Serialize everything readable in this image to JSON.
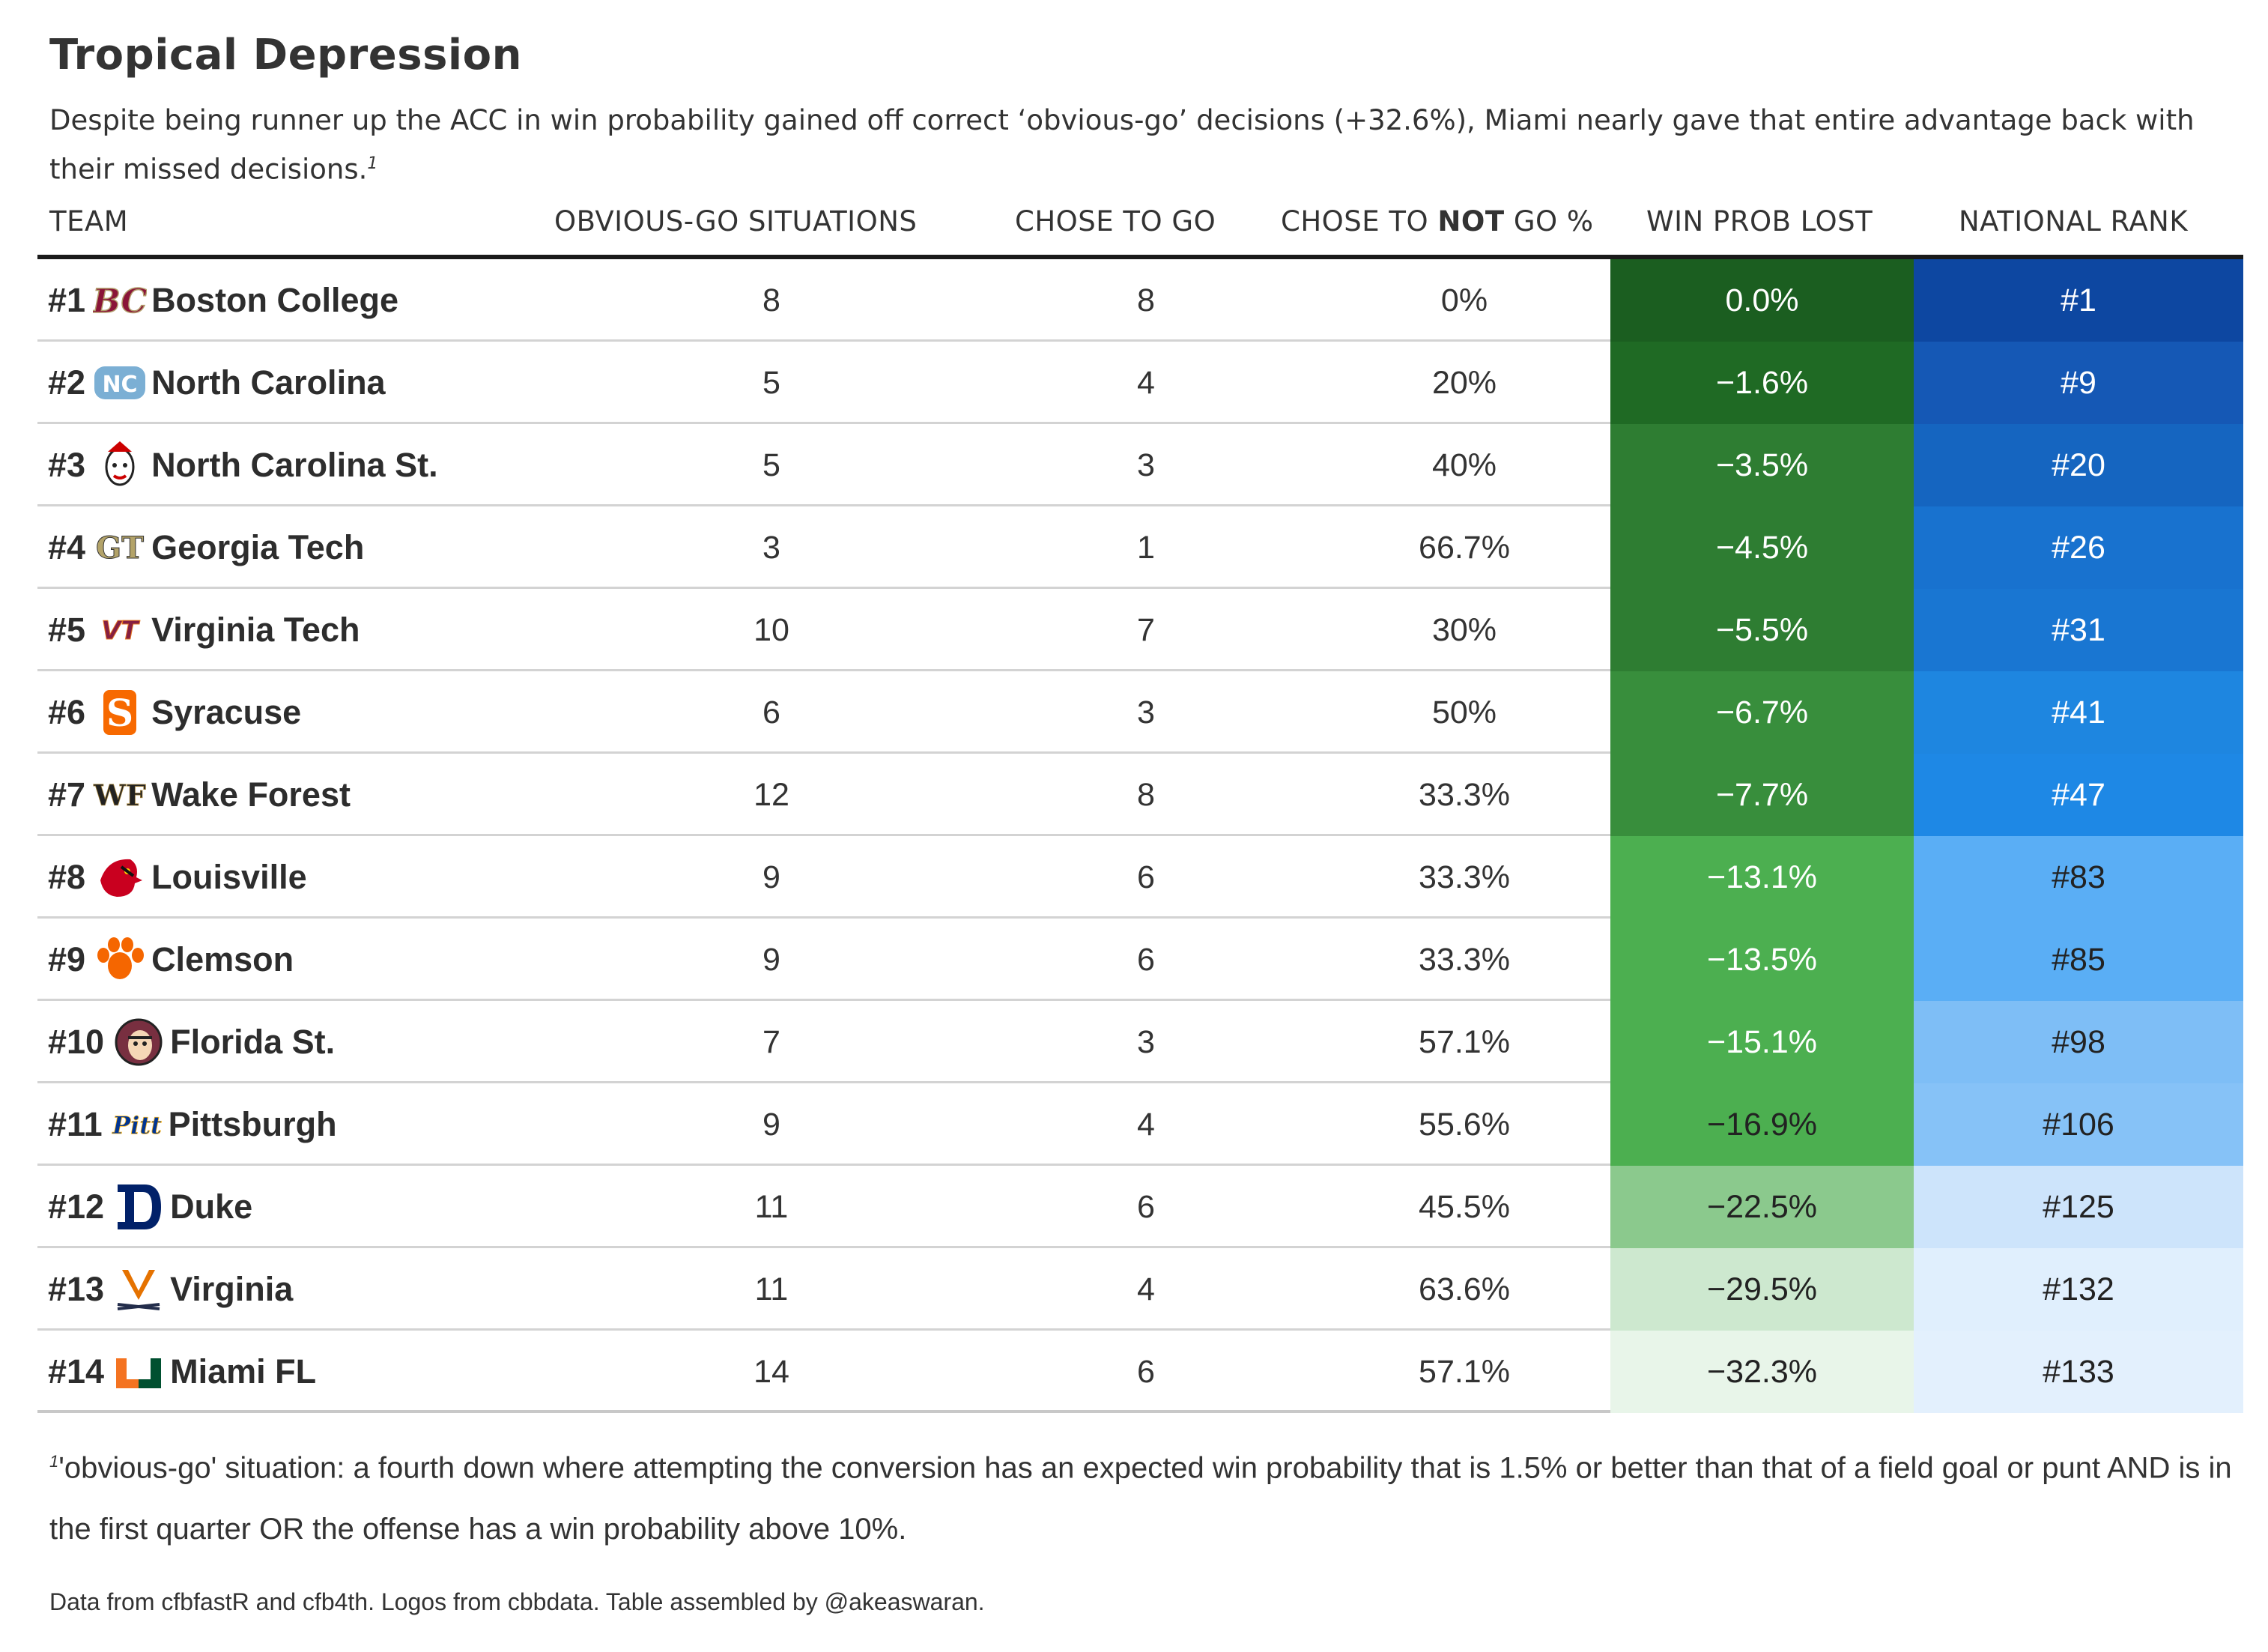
{
  "title": "Tropical Depression",
  "subtitle": "Despite being runner up the ACC in win probability gained off correct ‘obvious-go’ decisions (+32.6%), Miami nearly gave that entire advantage back with their missed decisions.",
  "subtitle_note_marker": "1",
  "headers": {
    "team": "TEAM",
    "obvious": "OBVIOUS-GO SITUATIONS",
    "chose": "CHOSE TO GO",
    "not_pre": "CHOSE TO ",
    "not_bold": "NOT",
    "not_post": " GO %",
    "wp": "WIN PROB LOST",
    "rank": "NATIONAL RANK"
  },
  "chart_data": {
    "type": "table",
    "columns": [
      "TEAM",
      "OBVIOUS-GO SITUATIONS",
      "CHOSE TO GO",
      "CHOSE TO NOT GO %",
      "WIN PROB LOST",
      "NATIONAL RANK"
    ],
    "rows": [
      {
        "rank": "#1",
        "team": "Boston College",
        "logo": "boston-college-logo",
        "obvious": 8,
        "chose": 8,
        "not_go": "0%",
        "wp_lost": "0.0%",
        "wp_value": 0.0,
        "national": "#1",
        "national_value": 1
      },
      {
        "rank": "#2",
        "team": "North Carolina",
        "logo": "north-carolina-logo",
        "obvious": 5,
        "chose": 4,
        "not_go": "20%",
        "wp_lost": "−1.6%",
        "wp_value": -1.6,
        "national": "#9",
        "national_value": 9
      },
      {
        "rank": "#3",
        "team": "North Carolina St.",
        "logo": "nc-state-logo",
        "obvious": 5,
        "chose": 3,
        "not_go": "40%",
        "wp_lost": "−3.5%",
        "wp_value": -3.5,
        "national": "#20",
        "national_value": 20
      },
      {
        "rank": "#4",
        "team": "Georgia Tech",
        "logo": "georgia-tech-logo",
        "obvious": 3,
        "chose": 1,
        "not_go": "66.7%",
        "wp_lost": "−4.5%",
        "wp_value": -4.5,
        "national": "#26",
        "national_value": 26
      },
      {
        "rank": "#5",
        "team": "Virginia Tech",
        "logo": "virginia-tech-logo",
        "obvious": 10,
        "chose": 7,
        "not_go": "30%",
        "wp_lost": "−5.5%",
        "wp_value": -5.5,
        "national": "#31",
        "national_value": 31
      },
      {
        "rank": "#6",
        "team": "Syracuse",
        "logo": "syracuse-logo",
        "obvious": 6,
        "chose": 3,
        "not_go": "50%",
        "wp_lost": "−6.7%",
        "wp_value": -6.7,
        "national": "#41",
        "national_value": 41
      },
      {
        "rank": "#7",
        "team": "Wake Forest",
        "logo": "wake-forest-logo",
        "obvious": 12,
        "chose": 8,
        "not_go": "33.3%",
        "wp_lost": "−7.7%",
        "wp_value": -7.7,
        "national": "#47",
        "national_value": 47
      },
      {
        "rank": "#8",
        "team": "Louisville",
        "logo": "louisville-logo",
        "obvious": 9,
        "chose": 6,
        "not_go": "33.3%",
        "wp_lost": "−13.1%",
        "wp_value": -13.1,
        "national": "#83",
        "national_value": 83
      },
      {
        "rank": "#9",
        "team": "Clemson",
        "logo": "clemson-logo",
        "obvious": 9,
        "chose": 6,
        "not_go": "33.3%",
        "wp_lost": "−13.5%",
        "wp_value": -13.5,
        "national": "#85",
        "national_value": 85
      },
      {
        "rank": "#10",
        "team": "Florida St.",
        "logo": "florida-state-logo",
        "obvious": 7,
        "chose": 3,
        "not_go": "57.1%",
        "wp_lost": "−15.1%",
        "wp_value": -15.1,
        "national": "#98",
        "national_value": 98
      },
      {
        "rank": "#11",
        "team": "Pittsburgh",
        "logo": "pittsburgh-logo",
        "obvious": 9,
        "chose": 4,
        "not_go": "55.6%",
        "wp_lost": "−16.9%",
        "wp_value": -16.9,
        "national": "#106",
        "national_value": 106
      },
      {
        "rank": "#12",
        "team": "Duke",
        "logo": "duke-logo",
        "obvious": 11,
        "chose": 6,
        "not_go": "45.5%",
        "wp_lost": "−22.5%",
        "wp_value": -22.5,
        "national": "#125",
        "national_value": 125
      },
      {
        "rank": "#13",
        "team": "Virginia",
        "logo": "virginia-logo",
        "obvious": 11,
        "chose": 4,
        "not_go": "63.6%",
        "wp_lost": "−29.5%",
        "wp_value": -29.5,
        "national": "#132",
        "national_value": 132
      },
      {
        "rank": "#14",
        "team": "Miami FL",
        "logo": "miami-logo",
        "obvious": 14,
        "chose": 6,
        "not_go": "57.1%",
        "wp_lost": "−32.3%",
        "wp_value": -32.3,
        "national": "#133",
        "national_value": 133
      }
    ],
    "wp_colors": [
      "#1b5e20",
      "#1f6a24",
      "#2e7d32",
      "#2e7d32",
      "#2e7d32",
      "#388e3c",
      "#388e3c",
      "#4caf50",
      "#4caf50",
      "#4caf50",
      "#4caf50",
      "#8bc98d",
      "#cde8cf",
      "#e8f5e9"
    ],
    "rank_colors": [
      "#0d47a1",
      "#1558b5",
      "#1565c0",
      "#1872cf",
      "#1976d2",
      "#1e86e0",
      "#1e88e5",
      "#5aaef5",
      "#5aaef5",
      "#7ebef6",
      "#86c2f7",
      "#cde4fb",
      "#e0effd",
      "#e3f0fd"
    ],
    "wp_text_light_until": 10
  },
  "footnote_marker": "1",
  "footnote": "'obvious-go' situation: a fourth down where attempting the conversion has an expected win probability that is 1.5% or better than that of a field goal or punt AND is in the first quarter OR the offense has a win probability above 10%.",
  "source": "Data from cfbfastR and cfb4th. Logos from cbbdata. Table assembled by @akeaswaran."
}
